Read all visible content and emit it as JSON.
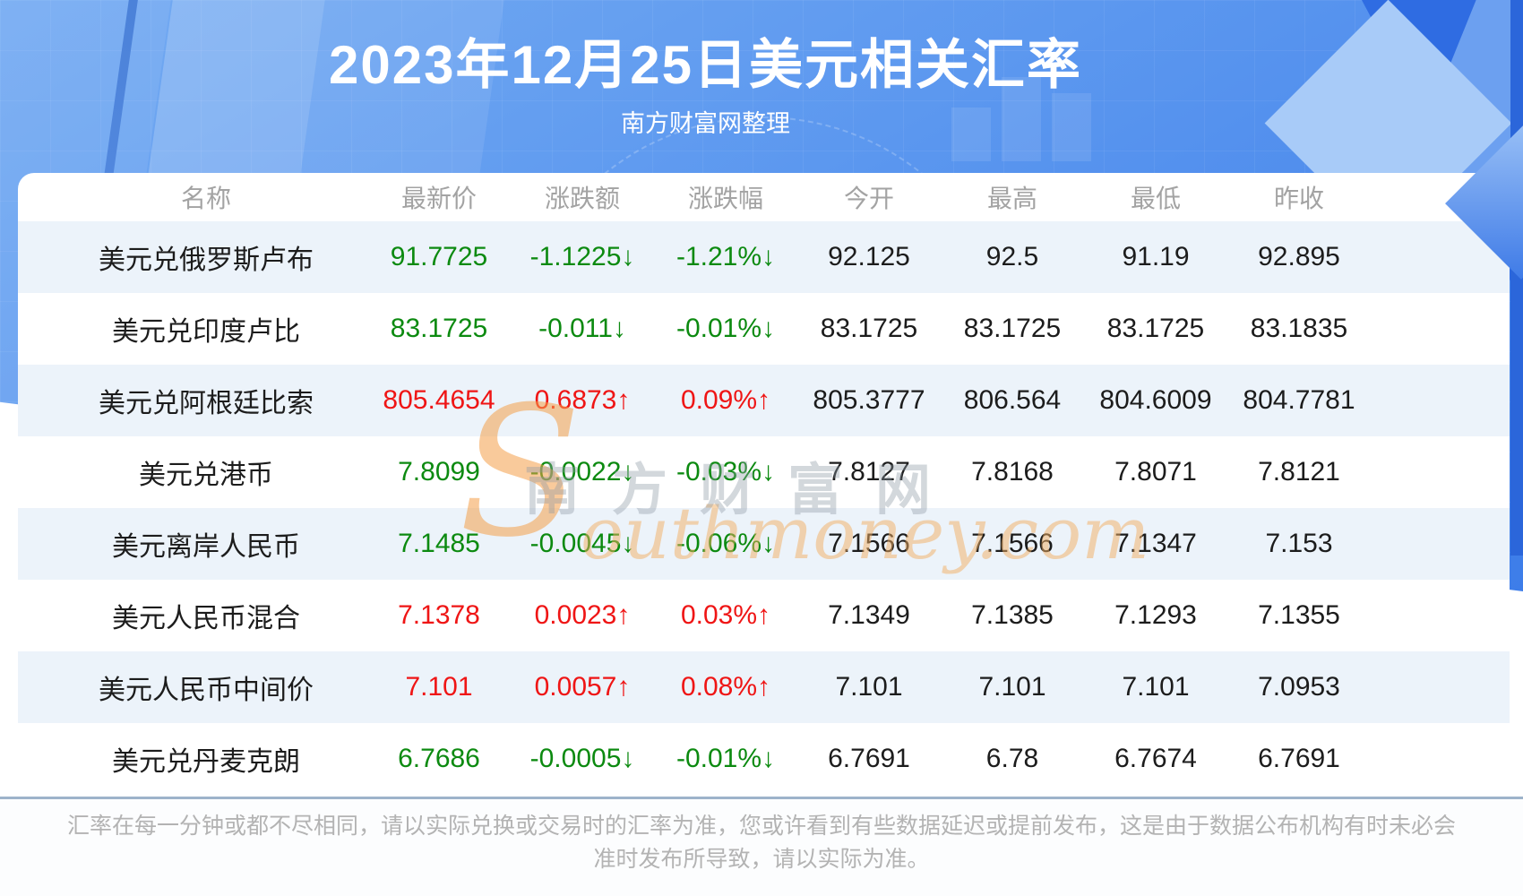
{
  "header": {
    "title": "2023年12月25日美元相关汇率",
    "subtitle": "南方财富网整理"
  },
  "watermark": {
    "cn": "南方财富网",
    "en_initial": "S",
    "en_rest": "outhmoney.com"
  },
  "chart_data": {
    "type": "table",
    "title": "2023年12月25日美元相关汇率",
    "columns": [
      "名称",
      "最新价",
      "涨跌额",
      "涨跌幅",
      "今开",
      "最高",
      "最低",
      "昨收"
    ],
    "rows": [
      {
        "name": "美元兑俄罗斯卢布",
        "latest": "91.7725",
        "change": "-1.1225↓",
        "change_pct": "-1.21%↓",
        "open": "92.125",
        "high": "92.5",
        "low": "91.19",
        "prev_close": "92.895",
        "direction": "down"
      },
      {
        "name": "美元兑印度卢比",
        "latest": "83.1725",
        "change": "-0.011↓",
        "change_pct": "-0.01%↓",
        "open": "83.1725",
        "high": "83.1725",
        "low": "83.1725",
        "prev_close": "83.1835",
        "direction": "down"
      },
      {
        "name": "美元兑阿根廷比索",
        "latest": "805.4654",
        "change": "0.6873↑",
        "change_pct": "0.09%↑",
        "open": "805.3777",
        "high": "806.564",
        "low": "804.6009",
        "prev_close": "804.7781",
        "direction": "up"
      },
      {
        "name": "美元兑港币",
        "latest": "7.8099",
        "change": "-0.0022↓",
        "change_pct": "-0.03%↓",
        "open": "7.8127",
        "high": "7.8168",
        "low": "7.8071",
        "prev_close": "7.8121",
        "direction": "down"
      },
      {
        "name": "美元离岸人民币",
        "latest": "7.1485",
        "change": "-0.0045↓",
        "change_pct": "-0.06%↓",
        "open": "7.1566",
        "high": "7.1566",
        "low": "7.1347",
        "prev_close": "7.153",
        "direction": "down"
      },
      {
        "name": "美元人民币混合",
        "latest": "7.1378",
        "change": "0.0023↑",
        "change_pct": "0.03%↑",
        "open": "7.1349",
        "high": "7.1385",
        "low": "7.1293",
        "prev_close": "7.1355",
        "direction": "up"
      },
      {
        "name": "美元人民币中间价",
        "latest": "7.101",
        "change": "0.0057↑",
        "change_pct": "0.08%↑",
        "open": "7.101",
        "high": "7.101",
        "low": "7.101",
        "prev_close": "7.0953",
        "direction": "up"
      },
      {
        "name": "美元兑丹麦克朗",
        "latest": "6.7686",
        "change": "-0.0005↓",
        "change_pct": "-0.01%↓",
        "open": "6.7691",
        "high": "6.78",
        "low": "6.7674",
        "prev_close": "6.7691",
        "direction": "down"
      }
    ]
  },
  "footer": {
    "disclaimer": "汇率在每一分钟或都不尽相同，请以实际兑换或交易时的汇率为准，您或许看到有些数据延迟或提前发布，这是由于数据公布机构有时未必会准时发布所导致，请以实际为准。"
  },
  "colors": {
    "up": "#ef1515",
    "down": "#0c8a10",
    "hero_blue": "#4a86e8",
    "stripe": "#ecf3fa"
  }
}
